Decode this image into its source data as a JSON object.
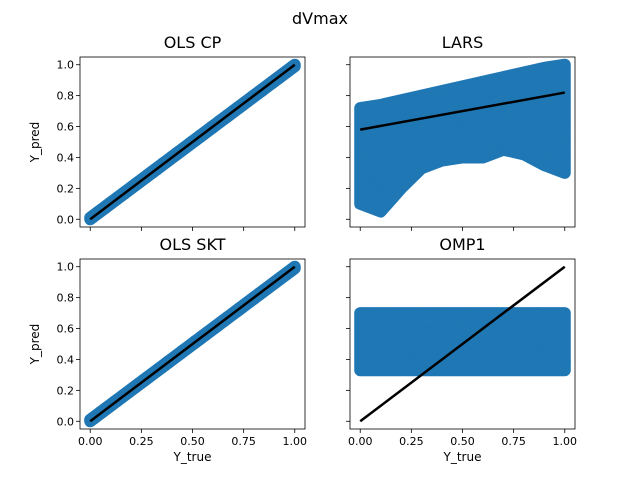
{
  "figure_title": "dVmax",
  "colors": {
    "scatter": "#1f77b4",
    "line": "#000000",
    "axes": "#000000",
    "background": "#ffffff"
  },
  "chart_data": [
    {
      "type": "scatter",
      "title": "OLS CP",
      "xlabel": "",
      "ylabel": "Y_pred",
      "xlim": [
        -0.05,
        1.05
      ],
      "ylim": [
        -0.05,
        1.05
      ],
      "xticks": [
        0.0,
        0.25,
        0.5,
        0.75,
        1.0
      ],
      "yticks": [
        0.0,
        0.2,
        0.4,
        0.6,
        0.8,
        1.0
      ],
      "show_xticklabels": false,
      "show_yticklabels": true,
      "ytick_labels": [
        "0.0",
        "0.2",
        "0.4",
        "0.6",
        "0.8",
        "1.0"
      ],
      "scatter_band": {
        "x": [
          0.0,
          1.0
        ],
        "y_low": [
          0.0,
          0.99
        ],
        "y_high": [
          0.01,
          1.0
        ],
        "description": "points lie on y = x"
      },
      "fit_line": {
        "x": [
          0.0,
          1.0
        ],
        "y": [
          0.0,
          1.0
        ]
      }
    },
    {
      "type": "scatter",
      "title": "LARS",
      "xlabel": "",
      "ylabel": "",
      "xlim": [
        -0.05,
        1.05
      ],
      "ylim": [
        -0.05,
        1.05
      ],
      "xticks": [
        0.0,
        0.25,
        0.5,
        0.75,
        1.0
      ],
      "yticks": [
        0.0,
        0.2,
        0.4,
        0.6,
        0.8,
        1.0
      ],
      "show_xticklabels": false,
      "show_yticklabels": false,
      "scatter_band": {
        "x": [
          0.0,
          0.1,
          0.2,
          0.3,
          0.4,
          0.5,
          0.6,
          0.7,
          0.8,
          0.9,
          1.0
        ],
        "y_low": [
          0.1,
          0.05,
          0.2,
          0.33,
          0.38,
          0.4,
          0.4,
          0.45,
          0.42,
          0.35,
          0.3
        ],
        "y_high": [
          0.72,
          0.74,
          0.77,
          0.8,
          0.83,
          0.86,
          0.89,
          0.92,
          0.95,
          0.98,
          1.0
        ]
      },
      "fit_line": {
        "x": [
          0.0,
          1.0
        ],
        "y": [
          0.58,
          0.82
        ]
      }
    },
    {
      "type": "scatter",
      "title": "OLS SKT",
      "xlabel": "Y_true",
      "ylabel": "Y_pred",
      "xlim": [
        -0.05,
        1.05
      ],
      "ylim": [
        -0.05,
        1.05
      ],
      "xticks": [
        0.0,
        0.25,
        0.5,
        0.75,
        1.0
      ],
      "yticks": [
        0.0,
        0.2,
        0.4,
        0.6,
        0.8,
        1.0
      ],
      "show_xticklabels": true,
      "show_yticklabels": true,
      "xtick_labels": [
        "0.00",
        "0.25",
        "0.50",
        "0.75",
        "1.00"
      ],
      "ytick_labels": [
        "0.0",
        "0.2",
        "0.4",
        "0.6",
        "0.8",
        "1.0"
      ],
      "scatter_band": {
        "x": [
          0.0,
          1.0
        ],
        "y_low": [
          0.0,
          0.99
        ],
        "y_high": [
          0.01,
          1.0
        ],
        "description": "points lie on y = x"
      },
      "fit_line": {
        "x": [
          0.0,
          1.0
        ],
        "y": [
          0.0,
          1.0
        ]
      }
    },
    {
      "type": "scatter",
      "title": "OMP1",
      "xlabel": "Y_true",
      "ylabel": "",
      "xlim": [
        -0.05,
        1.05
      ],
      "ylim": [
        -0.05,
        1.05
      ],
      "xticks": [
        0.0,
        0.25,
        0.5,
        0.75,
        1.0
      ],
      "yticks": [
        0.0,
        0.2,
        0.4,
        0.6,
        0.8,
        1.0
      ],
      "show_xticklabels": true,
      "show_yticklabels": false,
      "xtick_labels": [
        "0.00",
        "0.25",
        "0.50",
        "0.75",
        "1.00"
      ],
      "scatter_band": {
        "x": [
          0.0,
          1.0
        ],
        "y_low": [
          0.33,
          0.33
        ],
        "y_high": [
          0.7,
          0.7
        ]
      },
      "fit_line": {
        "x": [
          0.0,
          1.0
        ],
        "y": [
          0.0,
          1.0
        ]
      }
    }
  ]
}
